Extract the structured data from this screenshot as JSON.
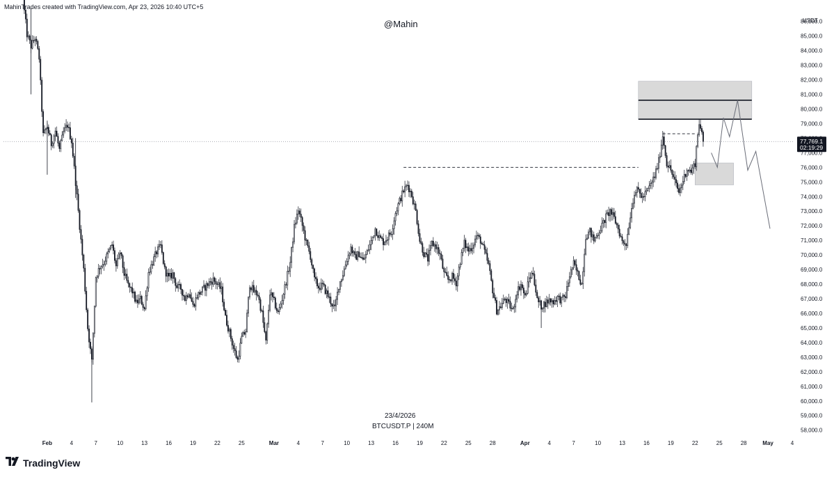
{
  "header": {
    "attribution": "MahinTrades created with TradingView.com, Apr 23, 2026 10:40 UTC+5"
  },
  "watermark": "@Mahin",
  "footer": {
    "date": "23/4/2026",
    "symbol": "BTCUSDT.P | 240M"
  },
  "brand": {
    "name": "TradingView",
    "icon": "tradingview-logo-icon"
  },
  "colors": {
    "candle": "#131722",
    "zone_fill": "#d9d9d9",
    "zone_border": "#b2b5be",
    "price_label_bg": "#131722"
  },
  "chart_data": {
    "type": "candlestick",
    "symbol": "BTCUSDT.P",
    "interval": "240M",
    "y_axis": {
      "unit": "USDT",
      "ylim": [
        57700,
        86700
      ],
      "ticks": [
        86000,
        85000,
        84000,
        83000,
        82000,
        81000,
        80000,
        79000,
        78000,
        77000,
        76000,
        75000,
        74000,
        73000,
        72000,
        71000,
        70000,
        69000,
        68000,
        67000,
        66000,
        65000,
        64000,
        63000,
        62000,
        61000,
        60000,
        59000,
        58000
      ],
      "tick_labels": [
        "86,000.0",
        "85,000.0",
        "84,000.0",
        "83,000.0",
        "82,000.0",
        "81,000.0",
        "80,000.0",
        "79,000.0",
        "78,000.0",
        "77,000.0",
        "76,000.0",
        "75,000.0",
        "74,000.0",
        "73,000.0",
        "72,000.0",
        "71,000.0",
        "70,000.0",
        "69,000.0",
        "68,000.0",
        "67,000.0",
        "66,000.0",
        "65,000.0",
        "64,000.0",
        "63,000.0",
        "62,000.0",
        "61,000.0",
        "60,000.0",
        "59,000.0",
        "58,000.0"
      ]
    },
    "x_axis": {
      "xlim": [
        "2026-01-29",
        "2026-05-04"
      ],
      "ticks": [
        {
          "date": "2026-02-01",
          "label": "Feb"
        },
        {
          "date": "2026-02-04",
          "label": "4"
        },
        {
          "date": "2026-02-07",
          "label": "7"
        },
        {
          "date": "2026-02-10",
          "label": "10"
        },
        {
          "date": "2026-02-13",
          "label": "13"
        },
        {
          "date": "2026-02-16",
          "label": "16"
        },
        {
          "date": "2026-02-19",
          "label": "19"
        },
        {
          "date": "2026-02-22",
          "label": "22"
        },
        {
          "date": "2026-02-25",
          "label": "25"
        },
        {
          "date": "2026-03-01",
          "label": "Mar"
        },
        {
          "date": "2026-03-04",
          "label": "4"
        },
        {
          "date": "2026-03-07",
          "label": "7"
        },
        {
          "date": "2026-03-10",
          "label": "10"
        },
        {
          "date": "2026-03-13",
          "label": "13"
        },
        {
          "date": "2026-03-16",
          "label": "16"
        },
        {
          "date": "2026-03-19",
          "label": "19"
        },
        {
          "date": "2026-03-22",
          "label": "22"
        },
        {
          "date": "2026-03-25",
          "label": "25"
        },
        {
          "date": "2026-03-28",
          "label": "28"
        },
        {
          "date": "2026-04-01",
          "label": "Apr"
        },
        {
          "date": "2026-04-04",
          "label": "4"
        },
        {
          "date": "2026-04-07",
          "label": "7"
        },
        {
          "date": "2026-04-10",
          "label": "10"
        },
        {
          "date": "2026-04-13",
          "label": "13"
        },
        {
          "date": "2026-04-16",
          "label": "16"
        },
        {
          "date": "2026-04-19",
          "label": "19"
        },
        {
          "date": "2026-04-22",
          "label": "22"
        },
        {
          "date": "2026-04-25",
          "label": "25"
        },
        {
          "date": "2026-04-28",
          "label": "28"
        },
        {
          "date": "2026-05-01",
          "label": "May"
        },
        {
          "date": "2026-05-04",
          "label": "4"
        }
      ]
    },
    "last_price": {
      "value": 77769.1,
      "label": "77,769.1",
      "countdown": "02:19:29"
    },
    "price_path": [
      [
        "2026-01-29",
        87500
      ],
      [
        "2026-01-29 12:00",
        85100
      ],
      [
        "2026-01-30",
        84300
      ],
      [
        "2026-01-30 12:00",
        84900
      ],
      [
        "2026-01-31",
        83500
      ],
      [
        "2026-01-31 12:00",
        78200
      ],
      [
        "2026-02-01",
        78800
      ],
      [
        "2026-02-01 12:00",
        77600
      ],
      [
        "2026-02-02",
        78500
      ],
      [
        "2026-02-02 12:00",
        77200
      ],
      [
        "2026-02-03",
        78400
      ],
      [
        "2026-02-03 12:00",
        78900
      ],
      [
        "2026-02-04",
        77800
      ],
      [
        "2026-02-04 12:00",
        75000
      ],
      [
        "2026-02-05",
        72000
      ],
      [
        "2026-02-05 12:00",
        69000
      ],
      [
        "2026-02-06",
        65000
      ],
      [
        "2026-02-06 12:00",
        62700
      ],
      [
        "2026-02-07",
        68500
      ],
      [
        "2026-02-07 12:00",
        69200
      ],
      [
        "2026-02-08",
        69500
      ],
      [
        "2026-02-09",
        70700
      ],
      [
        "2026-02-09 12:00",
        69200
      ],
      [
        "2026-02-10",
        70200
      ],
      [
        "2026-02-10 12:00",
        68700
      ],
      [
        "2026-02-11",
        67900
      ],
      [
        "2026-02-11 12:00",
        67500
      ],
      [
        "2026-02-12",
        66700
      ],
      [
        "2026-02-12 12:00",
        67000
      ],
      [
        "2026-02-13",
        66300
      ],
      [
        "2026-02-13 12:00",
        68800
      ],
      [
        "2026-02-14",
        69500
      ],
      [
        "2026-02-14 12:00",
        70200
      ],
      [
        "2026-02-15",
        70600
      ],
      [
        "2026-02-15 12:00",
        69000
      ],
      [
        "2026-02-16",
        68400
      ],
      [
        "2026-02-16 12:00",
        68700
      ],
      [
        "2026-02-17",
        67800
      ],
      [
        "2026-02-17 12:00",
        67700
      ],
      [
        "2026-02-18",
        67000
      ],
      [
        "2026-02-18 12:00",
        67500
      ],
      [
        "2026-02-19",
        66500
      ],
      [
        "2026-02-19 12:00",
        67200
      ],
      [
        "2026-02-20",
        67500
      ],
      [
        "2026-02-20 12:00",
        67800
      ],
      [
        "2026-02-21",
        68100
      ],
      [
        "2026-02-21 12:00",
        68300
      ],
      [
        "2026-02-22",
        68000
      ],
      [
        "2026-02-22 12:00",
        67600
      ],
      [
        "2026-02-23",
        65700
      ],
      [
        "2026-02-23 12:00",
        64700
      ],
      [
        "2026-02-24",
        63600
      ],
      [
        "2026-02-24 12:00",
        62800
      ],
      [
        "2026-02-25",
        64300
      ],
      [
        "2026-02-25 12:00",
        64800
      ],
      [
        "2026-02-26",
        68000
      ],
      [
        "2026-02-26 12:00",
        67500
      ],
      [
        "2026-02-27",
        67300
      ],
      [
        "2026-02-27 12:00",
        66000
      ],
      [
        "2026-02-28",
        64000
      ],
      [
        "2026-02-28 12:00",
        67400
      ],
      [
        "2026-03-01",
        66800
      ],
      [
        "2026-03-01 12:00",
        66000
      ],
      [
        "2026-03-02",
        67000
      ],
      [
        "2026-03-02 12:00",
        68200
      ],
      [
        "2026-03-03",
        69500
      ],
      [
        "2026-03-03 12:00",
        71900
      ],
      [
        "2026-03-04",
        73100
      ],
      [
        "2026-03-04 12:00",
        72000
      ],
      [
        "2026-03-05",
        70800
      ],
      [
        "2026-03-05 12:00",
        69900
      ],
      [
        "2026-03-06",
        68300
      ],
      [
        "2026-03-06 12:00",
        67800
      ],
      [
        "2026-03-07",
        67900
      ],
      [
        "2026-03-07 12:00",
        67400
      ],
      [
        "2026-03-08",
        66800
      ],
      [
        "2026-03-08 12:00",
        66300
      ],
      [
        "2026-03-09",
        67900
      ],
      [
        "2026-03-09 12:00",
        68700
      ],
      [
        "2026-03-10",
        69700
      ],
      [
        "2026-03-10 12:00",
        70500
      ],
      [
        "2026-03-11",
        69800
      ],
      [
        "2026-03-11 12:00",
        70100
      ],
      [
        "2026-03-12",
        69600
      ],
      [
        "2026-03-12 12:00",
        70200
      ],
      [
        "2026-03-13",
        70900
      ],
      [
        "2026-03-13 12:00",
        71800
      ],
      [
        "2026-03-14",
        71200
      ],
      [
        "2026-03-14 12:00",
        70900
      ],
      [
        "2026-03-15",
        71200
      ],
      [
        "2026-03-15 12:00",
        71600
      ],
      [
        "2026-03-16",
        72900
      ],
      [
        "2026-03-16 12:00",
        73700
      ],
      [
        "2026-03-17",
        74400
      ],
      [
        "2026-03-17 12:00",
        74800
      ],
      [
        "2026-03-18",
        74100
      ],
      [
        "2026-03-18 12:00",
        73000
      ],
      [
        "2026-03-19",
        71000
      ],
      [
        "2026-03-19 12:00",
        70100
      ],
      [
        "2026-03-20",
        69700
      ],
      [
        "2026-03-20 12:00",
        70800
      ],
      [
        "2026-03-21",
        70600
      ],
      [
        "2026-03-21 12:00",
        70000
      ],
      [
        "2026-03-22",
        68700
      ],
      [
        "2026-03-22 12:00",
        68300
      ],
      [
        "2026-03-23",
        68500
      ],
      [
        "2026-03-23 12:00",
        68100
      ],
      [
        "2026-03-24",
        69600
      ],
      [
        "2026-03-24 12:00",
        70800
      ],
      [
        "2026-03-25",
        70300
      ],
      [
        "2026-03-25 12:00",
        70600
      ],
      [
        "2026-03-26",
        71300
      ],
      [
        "2026-03-26 12:00",
        71000
      ],
      [
        "2026-03-27",
        70200
      ],
      [
        "2026-03-27 12:00",
        69300
      ],
      [
        "2026-03-28",
        67600
      ],
      [
        "2026-03-28 12:00",
        66200
      ],
      [
        "2026-03-29",
        66500
      ],
      [
        "2026-03-29 12:00",
        67000
      ],
      [
        "2026-03-30",
        66600
      ],
      [
        "2026-03-30 12:00",
        66200
      ],
      [
        "2026-03-31",
        67500
      ],
      [
        "2026-03-31 12:00",
        68000
      ],
      [
        "2026-04-01",
        67100
      ],
      [
        "2026-04-01 12:00",
        68400
      ],
      [
        "2026-04-02",
        68800
      ],
      [
        "2026-04-02 12:00",
        66900
      ],
      [
        "2026-04-03",
        66500
      ],
      [
        "2026-04-03 12:00",
        66700
      ],
      [
        "2026-04-04",
        66900
      ],
      [
        "2026-04-04 12:00",
        66800
      ],
      [
        "2026-04-05",
        67100
      ],
      [
        "2026-04-05 12:00",
        66900
      ],
      [
        "2026-04-06",
        67200
      ],
      [
        "2026-04-06 12:00",
        68600
      ],
      [
        "2026-04-07",
        69400
      ],
      [
        "2026-04-07 12:00",
        68700
      ],
      [
        "2026-04-08",
        68000
      ],
      [
        "2026-04-08 12:00",
        71300
      ],
      [
        "2026-04-09",
        71600
      ],
      [
        "2026-04-09 12:00",
        71000
      ],
      [
        "2026-04-10",
        71500
      ],
      [
        "2026-04-10 12:00",
        72000
      ],
      [
        "2026-04-11",
        72600
      ],
      [
        "2026-04-11 12:00",
        73000
      ],
      [
        "2026-04-12",
        72500
      ],
      [
        "2026-04-12 12:00",
        71800
      ],
      [
        "2026-04-13",
        70900
      ],
      [
        "2026-04-13 12:00",
        70800
      ],
      [
        "2026-04-14",
        72700
      ],
      [
        "2026-04-14 12:00",
        74300
      ],
      [
        "2026-04-15",
        74400
      ],
      [
        "2026-04-15 12:00",
        73900
      ],
      [
        "2026-04-16",
        74300
      ],
      [
        "2026-04-16 12:00",
        74800
      ],
      [
        "2026-04-17",
        75400
      ],
      [
        "2026-04-17 12:00",
        76400
      ],
      [
        "2026-04-18",
        78200
      ],
      [
        "2026-04-18 12:00",
        76300
      ],
      [
        "2026-04-19",
        75800
      ],
      [
        "2026-04-19 12:00",
        75000
      ],
      [
        "2026-04-20",
        74300
      ],
      [
        "2026-04-20 12:00",
        75100
      ],
      [
        "2026-04-21",
        75900
      ],
      [
        "2026-04-21 12:00",
        75700
      ],
      [
        "2026-04-22",
        76300
      ],
      [
        "2026-04-22 06:00",
        77900
      ],
      [
        "2026-04-22 12:00",
        79100
      ],
      [
        "2026-04-22 18:00",
        78400
      ],
      [
        "2026-04-23",
        77769.1
      ]
    ],
    "volatility_spikes": [
      [
        "2026-02-06 12:00",
        59900,
        63100
      ],
      [
        "2026-01-30",
        81000,
        86900
      ],
      [
        "2026-02-01",
        75500,
        79200
      ],
      [
        "2026-02-04 12:00",
        73900,
        78000
      ],
      [
        "2026-04-03",
        65000,
        66800
      ]
    ],
    "annotations": {
      "supply_zone": {
        "x_from": "2026-04-15",
        "x_to": "2026-04-29",
        "y_from": 79300,
        "y_to": 81900
      },
      "supply_lines": [
        {
          "y": 80600,
          "x_from": "2026-04-15",
          "x_to": "2026-04-29"
        },
        {
          "y": 79300,
          "x_from": "2026-04-15",
          "x_to": "2026-04-29"
        }
      ],
      "demand_zone": {
        "x_from": "2026-04-22",
        "x_to": "2026-04-26 18:00",
        "y_from": 74800,
        "y_to": 76300
      },
      "dashed_levels": [
        {
          "y": 76000,
          "x_from": "2026-03-17",
          "x_to": "2026-04-15"
        },
        {
          "y": 78300,
          "x_from": "2026-04-18",
          "x_to": "2026-04-22"
        }
      ],
      "projection_path": [
        [
          "2026-04-24",
          77000
        ],
        [
          "2026-04-24 18:00",
          76000
        ],
        [
          "2026-04-25 12:00",
          79400
        ],
        [
          "2026-04-26 06:00",
          78100
        ],
        [
          "2026-04-27 06:00",
          80600
        ],
        [
          "2026-04-28 12:00",
          75800
        ],
        [
          "2026-04-29 12:00",
          77100
        ],
        [
          "2026-05-01 06:00",
          71800
        ]
      ]
    }
  }
}
